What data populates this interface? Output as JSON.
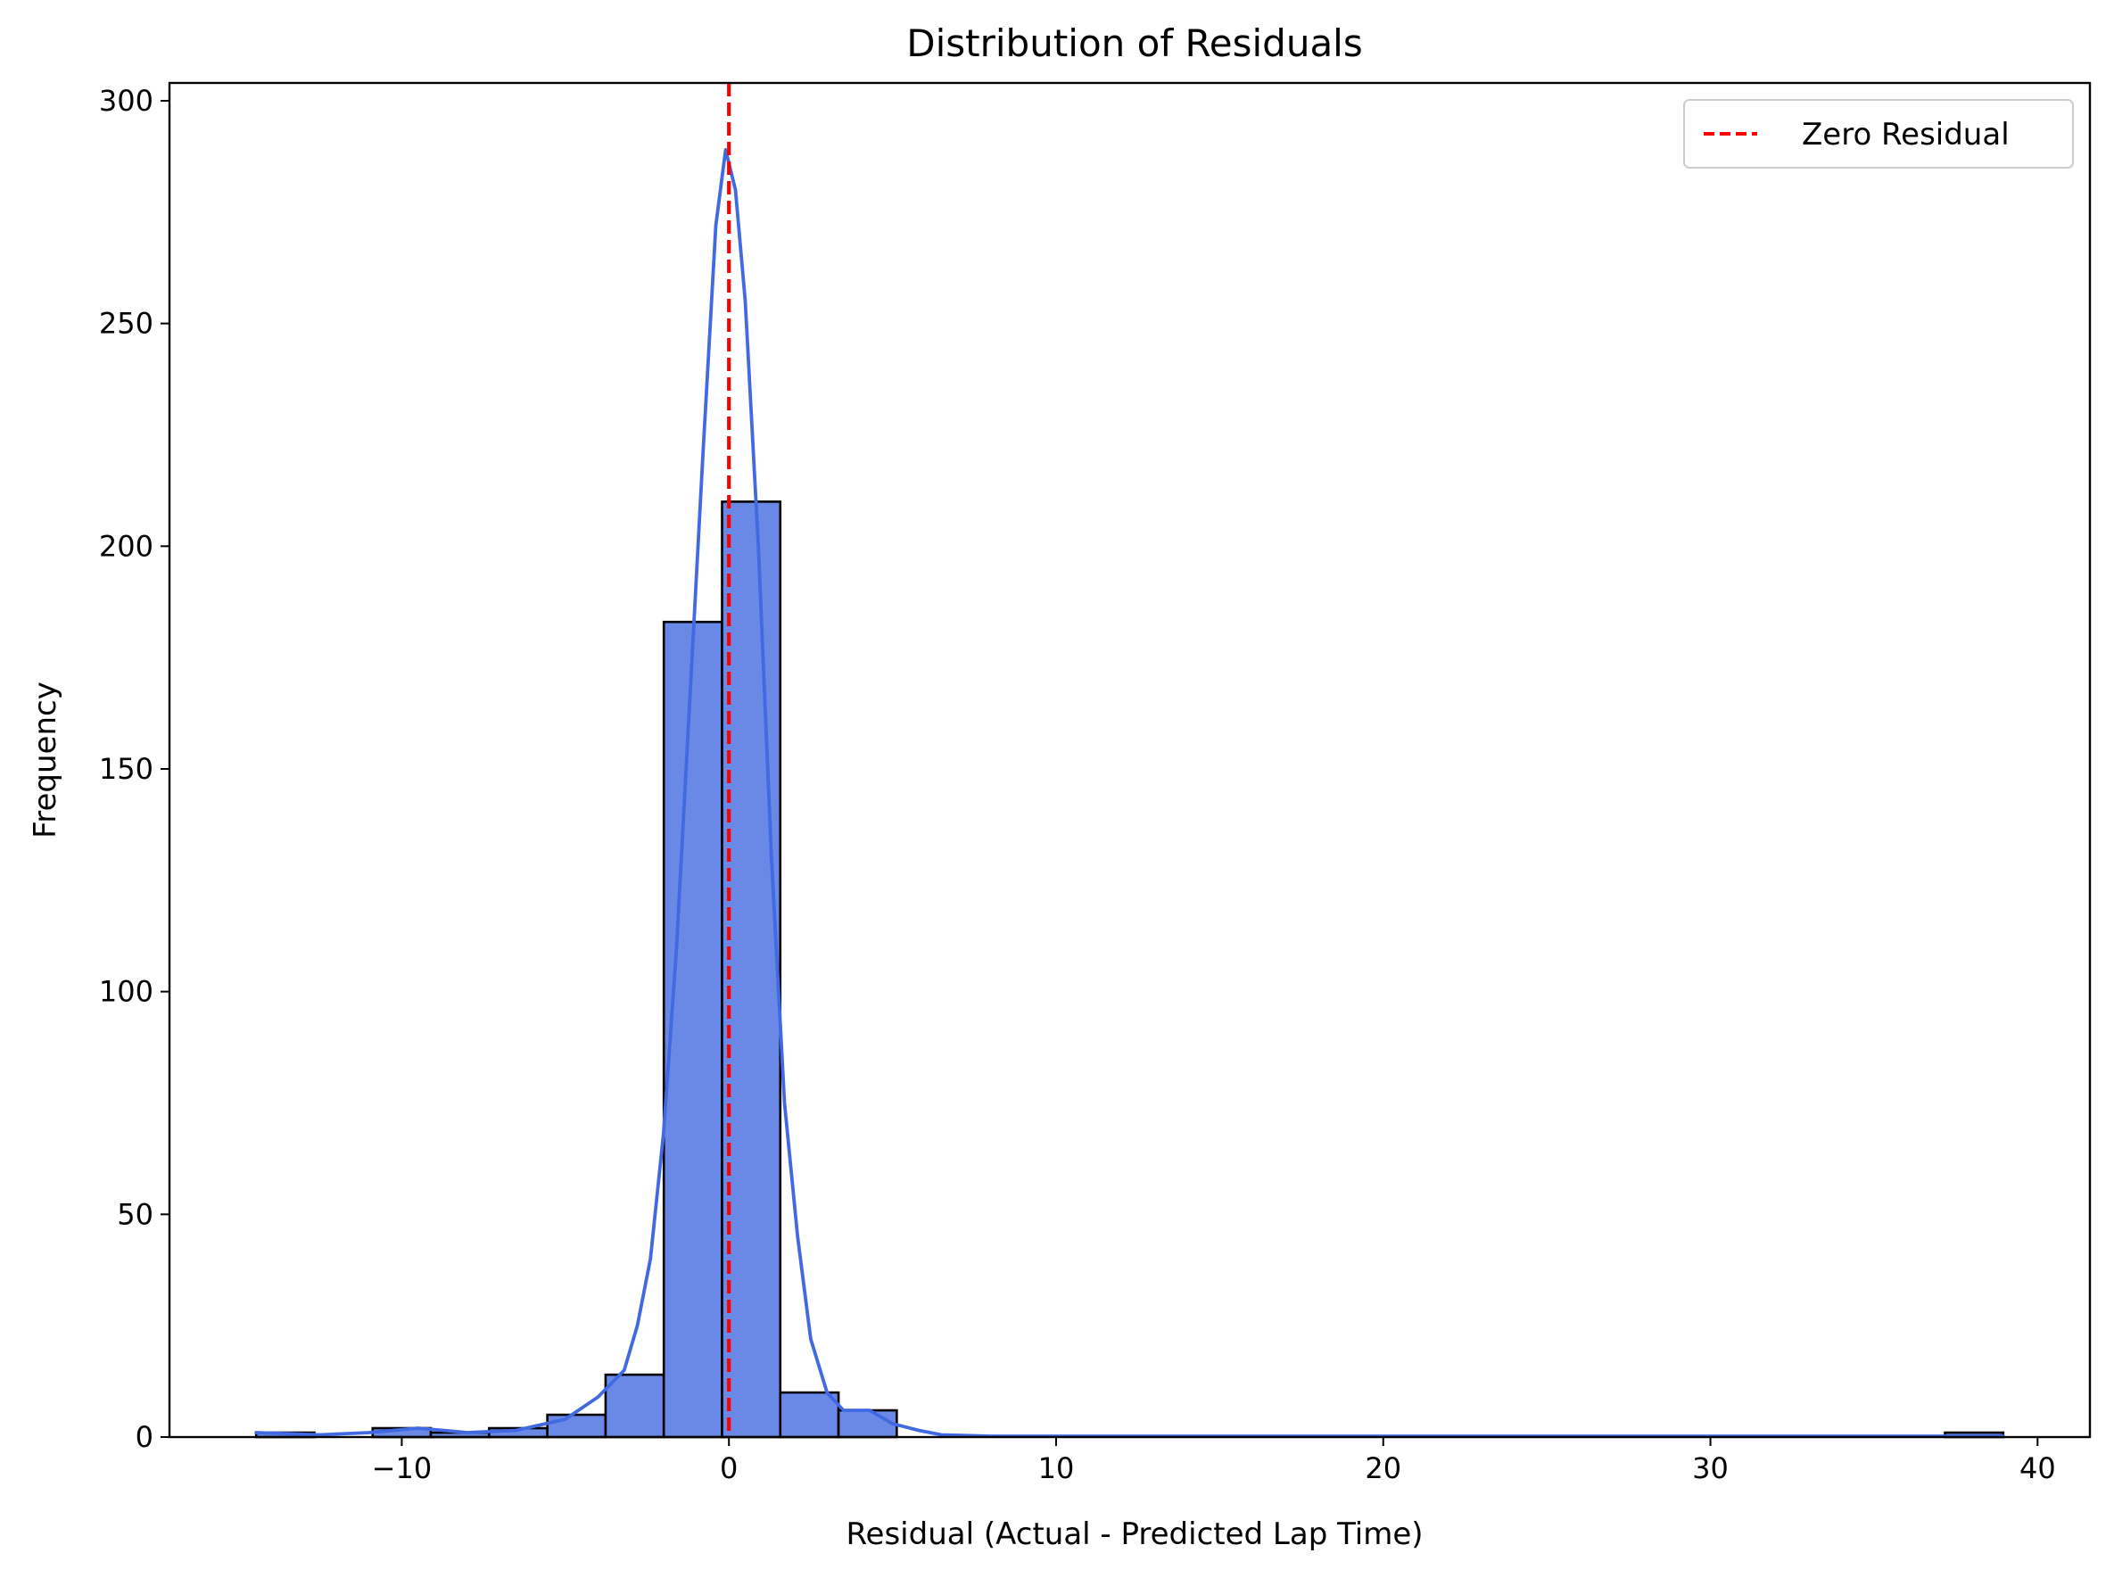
{
  "chart_data": {
    "type": "bar",
    "title": "Distribution of Residuals",
    "xlabel": "Residual (Actual - Predicted Lap Time)",
    "ylabel": "Frequency",
    "xlim": [
      -17.1,
      41.6
    ],
    "ylim": [
      0,
      304
    ],
    "xticks": [
      -10,
      0,
      10,
      20,
      30,
      40
    ],
    "xtick_labels": [
      "−10",
      "0",
      "10",
      "20",
      "30",
      "40"
    ],
    "yticks": [
      0,
      50,
      100,
      150,
      200,
      250,
      300
    ],
    "ytick_labels": [
      "0",
      "50",
      "100",
      "150",
      "200",
      "250",
      "300"
    ],
    "grid": false,
    "legend_position": "top-right",
    "colors": {
      "bar_fill": "#6a89e6",
      "bar_edge": "#000000",
      "kde_line": "#4169e1",
      "zero_line": "#ff0000"
    },
    "histogram": {
      "bin_edges": [
        -14.45,
        -12.67,
        -10.89,
        -9.11,
        -7.33,
        -5.55,
        -3.77,
        -1.99,
        -0.21,
        1.57,
        3.35,
        5.13,
        6.91,
        8.69,
        10.47,
        12.25,
        14.03,
        15.81,
        17.59,
        19.37,
        21.15,
        22.93,
        24.71,
        26.49,
        28.27,
        30.05,
        31.83,
        33.61,
        35.39,
        37.17,
        38.95
      ],
      "counts": [
        1,
        0,
        2,
        1,
        2,
        5,
        14,
        183,
        210,
        10,
        6,
        0,
        0,
        0,
        0,
        0,
        0,
        0,
        0,
        0,
        0,
        0,
        0,
        0,
        0,
        0,
        0,
        0,
        0,
        1
      ]
    },
    "series": [
      {
        "type": "kde-line",
        "points": [
          [
            -14.45,
            1
          ],
          [
            -12.5,
            0.5
          ],
          [
            -11,
            1
          ],
          [
            -9.5,
            2
          ],
          [
            -8,
            1
          ],
          [
            -6.5,
            1.5
          ],
          [
            -5,
            4
          ],
          [
            -4,
            9
          ],
          [
            -3.2,
            15
          ],
          [
            -2.8,
            25
          ],
          [
            -2.4,
            40
          ],
          [
            -2.0,
            68
          ],
          [
            -1.6,
            110
          ],
          [
            -1.2,
            165
          ],
          [
            -0.8,
            220
          ],
          [
            -0.4,
            272
          ],
          [
            -0.1,
            289
          ],
          [
            0.2,
            280
          ],
          [
            0.5,
            255
          ],
          [
            0.9,
            200
          ],
          [
            1.3,
            130
          ],
          [
            1.7,
            75
          ],
          [
            2.1,
            45
          ],
          [
            2.5,
            22
          ],
          [
            3.0,
            10
          ],
          [
            3.5,
            6
          ],
          [
            4.3,
            6
          ],
          [
            5.0,
            3
          ],
          [
            5.8,
            1.5
          ],
          [
            6.5,
            0.5
          ],
          [
            8,
            0.2
          ],
          [
            38.95,
            0.2
          ]
        ]
      },
      {
        "name": "Zero Residual",
        "type": "vline",
        "x": 0
      }
    ]
  }
}
